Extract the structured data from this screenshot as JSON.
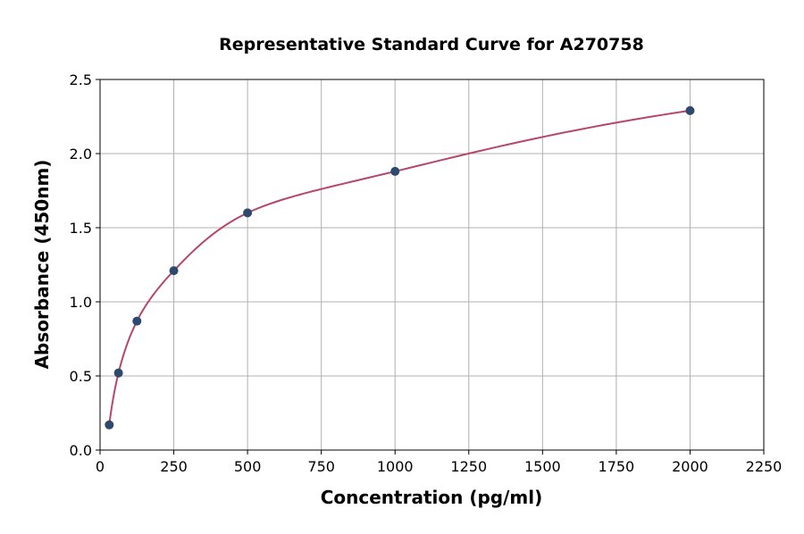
{
  "chart_data": {
    "type": "scatter",
    "title": "Representative Standard Curve for A270758",
    "xlabel": "Concentration (pg/ml)",
    "ylabel": "Absorbance (450nm)",
    "xlim": [
      0,
      2250
    ],
    "ylim": [
      0,
      2.5
    ],
    "xticks": [
      0,
      250,
      500,
      750,
      1000,
      1250,
      1500,
      1750,
      2000,
      2250
    ],
    "yticks": [
      "0.0",
      "0.5",
      "1.0",
      "1.5",
      "2.0",
      "2.5"
    ],
    "grid": true,
    "points": [
      {
        "x": 31.25,
        "y": 0.17
      },
      {
        "x": 62.5,
        "y": 0.52
      },
      {
        "x": 125,
        "y": 0.87
      },
      {
        "x": 250,
        "y": 1.21
      },
      {
        "x": 500,
        "y": 1.6
      },
      {
        "x": 1000,
        "y": 1.88
      },
      {
        "x": 2000,
        "y": 2.29
      }
    ],
    "colors": {
      "points": "#2d4a6e",
      "curve": "#b5476c"
    }
  }
}
